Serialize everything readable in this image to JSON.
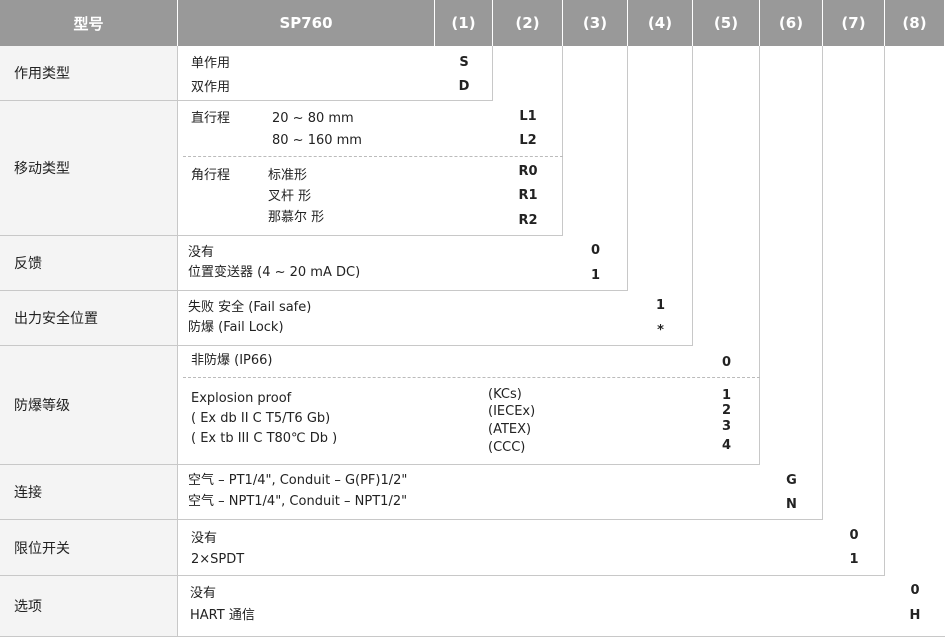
{
  "header": {
    "model_label": "型号",
    "model": "SP760",
    "columns": [
      "(1)",
      "(2)",
      "(3)",
      "(4)",
      "(5)",
      "(6)",
      "(7)",
      "(8)"
    ]
  },
  "rows": [
    {
      "label": "作用类型",
      "items": [
        "单作用",
        "双作用"
      ],
      "codes": [
        "S",
        "D"
      ]
    },
    {
      "label": "移动类型",
      "items": [
        "直行程",
        "20  ~  80   mm",
        "80  ~  160   mm",
        "角行程",
        "标准形",
        "叉杆 形",
        "那慕尔 形"
      ],
      "codes": [
        "L1",
        "L2",
        "R0",
        "R1",
        "R2"
      ]
    },
    {
      "label": "反馈",
      "items": [
        "没有",
        "位置变送器 (4 ~ 20 mA DC)"
      ],
      "codes": [
        "0",
        "1"
      ]
    },
    {
      "label": "出力安全位置",
      "items": [
        "失败 安全 (Fail  safe)",
        "防爆 (Fail  Lock)"
      ],
      "codes": [
        "1",
        "*"
      ]
    },
    {
      "label": "防爆等级",
      "items": [
        "非防爆 (IP66)",
        "Explosion proof",
        "( Ex db II C T5/T6 Gb)",
        "( Ex tb  III C T80℃ Db )",
        "(KCs)",
        "(IECEx)",
        "(ATEX)",
        "(CCC)"
      ],
      "codes": [
        "0",
        "1",
        "2",
        "3",
        "4"
      ]
    },
    {
      "label": "连接",
      "items": [
        "空气  – PT1/4\", Conduit – G(PF)1/2\"",
        "空气  – NPT1/4\", Conduit – NPT1/2\""
      ],
      "codes": [
        "G",
        "N"
      ]
    },
    {
      "label": "限位开关",
      "items": [
        "没有",
        "2×SPDT"
      ],
      "codes": [
        "0",
        "1"
      ]
    },
    {
      "label": "选项",
      "items": [
        "没有",
        "HART 通信"
      ],
      "codes": [
        "0",
        "H"
      ]
    }
  ]
}
